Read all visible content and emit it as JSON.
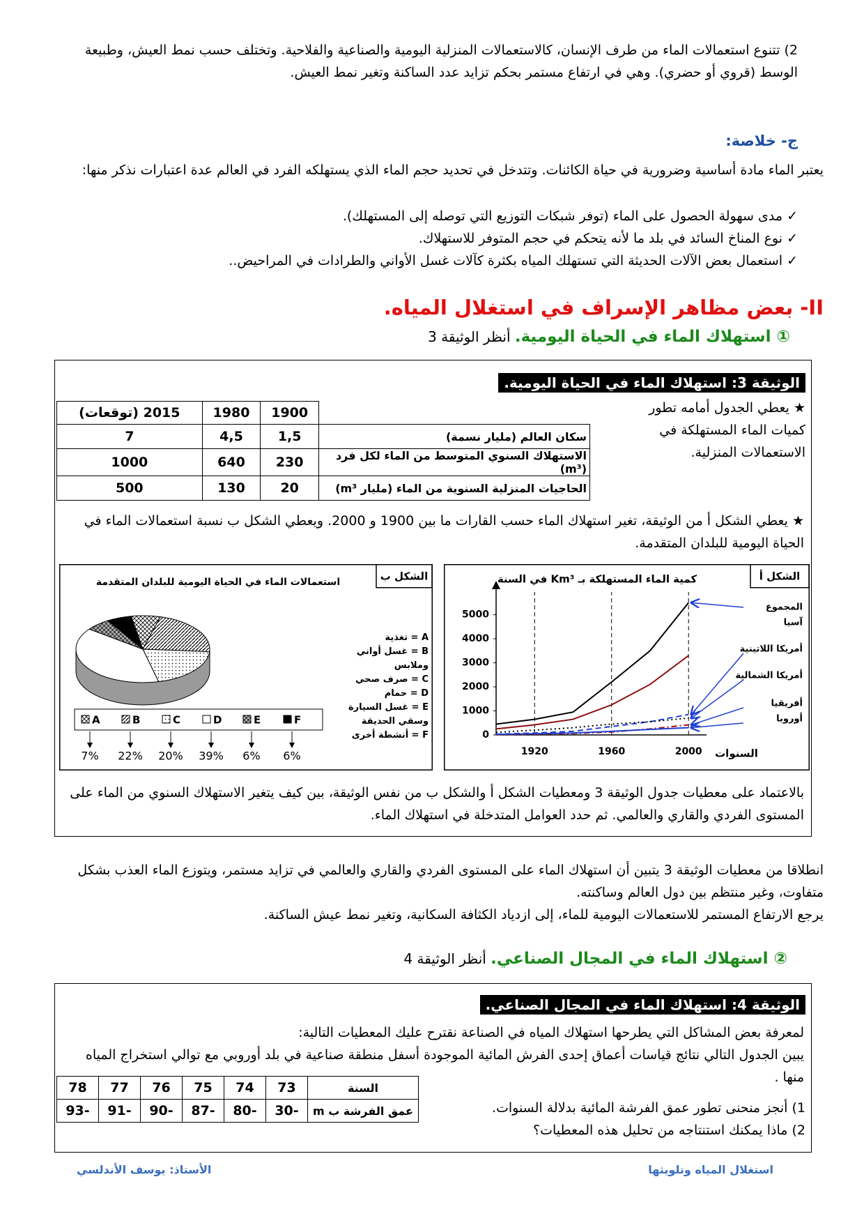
{
  "intro_paragraph": "2) تتنوع استعمالات الماء من طرف الإنسان، كالاستعمالات المنزلية اليومية والصناعية والفلاحية. وتختلف حسب نمط العيش، وطبيعة الوسط (قروي أو حضري). وهي في ارتفاع مستمر بحكم تزايد عدد الساكنة وتغير نمط العيش.",
  "conclusion": {
    "heading": "ج- خلاصة:",
    "text": "يعتبر الماء مادة أساسية وضرورية في حياة الكائنات. وتتدخل في تحديد حجم الماء الذي يستهلكه الفرد في العالم عدة اعتبارات نذكر منها:",
    "bullets": [
      "✓ مدى سهولة الحصول على الماء (توفر شبكات التوزيع التي توصله إلى المستهلك).",
      "✓ نوع المناخ السائد في بلد ما لأنه يتحكم في حجم المتوفر للاستهلاك.",
      "✓ استعمال بعض الآلات الحديثة التي تستهلك المياه بكثرة كآلات غسل الأواني والطرادات في المراحيض.."
    ]
  },
  "section_ii": {
    "heading": "II- بعض مظاهر الإسراف في استغلال المياه.",
    "sub1_title": "① استهلاك الماء في الحياة اليومية.",
    "sub1_ref": "أنظر الوثيقة 3",
    "sub2_title": "② استهلاك الماء في المجال الصناعي.",
    "sub2_ref": "أنظر الوثيقة 4"
  },
  "doc3": {
    "title": "الوثيقة 3: استهلاك الماء في الحياة اليومية.",
    "intro": "★ يعطي الجدول أمامه تطور كميات الماء المستهلكة في الاستعمالات المنزلية.",
    "table": {
      "columns": [
        1900,
        1980,
        "2015 (توقعات)"
      ],
      "rows": [
        {
          "label": "سكان العالم (مليار نسمة)",
          "cells": [
            "1,5",
            "4,5",
            7
          ]
        },
        {
          "label": "الاستهلاك السنوي المتوسط من الماء لكل فرد (m³)",
          "cells": [
            230,
            640,
            1000
          ]
        },
        {
          "label": "الحاجيات المنزلية السنوية من الماء (مليار m³)",
          "cells": [
            20,
            130,
            500
          ]
        }
      ]
    },
    "figures_text": "★ يعطي الشكل أ من الوثيقة، تغير استهلاك الماء حسب القارات ما بين 1900 و 2000. ويعطي الشكل ب نسبة استعمالات الماء في الحياة اليومية للبلدان المتقدمة.",
    "figure_a": {
      "type": "line",
      "label": "الشكل أ",
      "title": "كمية الماء المستهلكة بـ Km³ في السنة",
      "x_label": "السنوات",
      "x": [
        1900,
        1920,
        1940,
        1960,
        1980,
        2000
      ],
      "xlim": [
        1900,
        2005
      ],
      "ylim": [
        0,
        5800
      ],
      "xticks": [
        1920,
        1960,
        2000
      ],
      "yticks": [
        0,
        1000,
        2000,
        3000,
        4000,
        5000
      ],
      "xgrid": true,
      "series": [
        {
          "name": "المجموع",
          "color": "#000000",
          "dash": "solid",
          "values": [
            450,
            650,
            950,
            2200,
            3500,
            5500
          ]
        },
        {
          "name": "آسيا",
          "color": "#8b1010",
          "dash": "solid",
          "values": [
            250,
            420,
            650,
            1250,
            2100,
            3300
          ]
        },
        {
          "name": "أمريكا اللاتينية",
          "color": "#1f3fd0",
          "dash": "dashed",
          "values": [
            30,
            80,
            150,
            350,
            550,
            850
          ]
        },
        {
          "name": "أمريكا الشمالية",
          "color": "#000000",
          "dash": "dotted",
          "values": [
            100,
            200,
            300,
            450,
            550,
            700
          ]
        },
        {
          "name": "أفريقيا",
          "color": "#b01010",
          "dash": "dashdot",
          "values": [
            10,
            30,
            60,
            120,
            250,
            420
          ]
        },
        {
          "name": "أوروبا",
          "color": "#1f3fd0",
          "dash": "solid",
          "values": [
            20,
            50,
            80,
            150,
            230,
            300
          ]
        }
      ]
    },
    "figure_b": {
      "type": "pie",
      "label": "الشكل ب",
      "title": "استعمالات الماء في الحياة اليومية للبلدان المتقدمة",
      "categories": [
        "A",
        "B",
        "C",
        "D",
        "E",
        "F"
      ],
      "values": [
        7,
        22,
        20,
        39,
        6,
        6
      ],
      "value_labels": [
        "7%",
        "22%",
        "20%",
        "39%",
        "6%",
        "6%"
      ],
      "legend": [
        "A = تغذية",
        "B = غسل أواني وملابس",
        "C = صرف صحي",
        "D = حمام",
        "E = غسل السيارة وسقي الحديقة",
        "F = أنشطة أخرى"
      ]
    },
    "question": "بالاعتماد على معطيات جدول الوثيقة 3 ومعطيات الشكل أ والشكل ب من نفس الوثيقة، بين كيف يتغير الاستهلاك السنوي من الماء على المستوى الفردي والقاري والعالمي. ثم حدد العوامل المتدخلة في استهلاك الماء."
  },
  "analysis": [
    "انطلاقا من معطيات الوثيقة 3 يتبين أن استهلاك الماء على المستوى الفردي والقاري والعالمي في تزايد مستمر، ويتوزع الماء العذب بشكل متفاوت، وغير منتظم بين دول العالم وساكنته.",
    "يرجع الارتفاع المستمر للاستعمالات اليومية للماء، إلى ازدياد الكثافة السكانية، وتغير نمط عيش الساكنة."
  ],
  "doc4": {
    "title": "الوثيقة 4: استهلاك الماء في المجال الصناعي.",
    "text": [
      "لمعرفة بعض المشاكل التي يطرحها استهلاك المياه في الصناعة نقترح عليك المعطيات التالية:",
      "يبين الجدول التالي نتائج قياسات أعماق إحدى الفرش المائية الموجودة أسفل منطقة صناعية في بلد أوروبي مع توالي استخراج المياه منها ."
    ],
    "table": {
      "year_label": "السنة",
      "years": [
        73,
        74,
        75,
        76,
        77,
        78
      ],
      "depth_label": "عمق الفرشة ب m",
      "depths": [
        -30,
        -80,
        -87,
        -90,
        -91,
        -93
      ]
    },
    "questions": [
      "1) أنجز منحنى تطور عمق الفرشة المائية بدلالة السنوات.",
      "2) ماذا يمكنك استنتاجه من تحليل هذه المعطيات؟"
    ]
  },
  "footer": {
    "subject": "استغلال المياه وتلويثها",
    "teacher": "الأستاذ: يوسف الأندلسي"
  }
}
